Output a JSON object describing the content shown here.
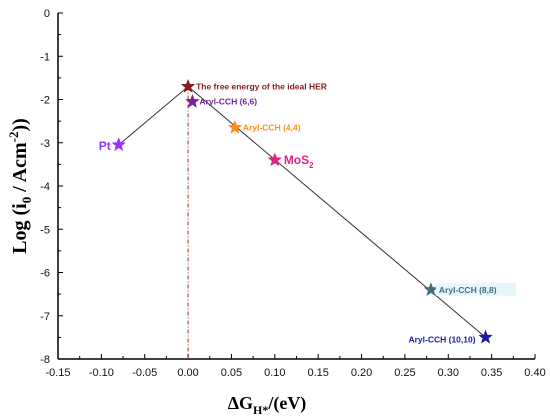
{
  "chart_data": {
    "type": "scatter",
    "title": "",
    "xlabel": {
      "main": "ΔG",
      "sub": "H*",
      "rest": "/(eV)"
    },
    "ylabel": {
      "main": "Log (i",
      "sub": "0",
      "mid": " / Acm",
      "sup": "-2",
      "rest": "))"
    },
    "xlim": [
      -0.15,
      0.4
    ],
    "ylim": [
      -8,
      0
    ],
    "xticks": [
      -0.15,
      -0.1,
      -0.05,
      0.0,
      0.05,
      0.1,
      0.15,
      0.2,
      0.25,
      0.3,
      0.35,
      0.4
    ],
    "xtick_labels": [
      "-0.15",
      "-0.10",
      "-0.05",
      "0.00",
      "0.05",
      "0.10",
      "0.15",
      "0.20",
      "0.25",
      "0.30",
      "0.35",
      "0.40"
    ],
    "yticks": [
      0,
      -1,
      -2,
      -3,
      -4,
      -5,
      -6,
      -7,
      -8
    ],
    "ytick_labels": [
      "0",
      "-1",
      "-2",
      "-3",
      "-4",
      "-5",
      "-6",
      "-7",
      "-8"
    ],
    "reference_line_x": 0.0,
    "volcano_line": [
      {
        "x": -0.08,
        "y": -3.05
      },
      {
        "x": 0.0,
        "y": -1.7
      },
      {
        "x": 0.343,
        "y": -7.5
      }
    ],
    "points": [
      {
        "name": "Pt",
        "x": -0.08,
        "y": -3.05,
        "color": "#9b30ff"
      },
      {
        "name": "The free energy of the ideal HER",
        "x": 0.0,
        "y": -1.7,
        "color": "#8b1a1a"
      },
      {
        "name": "Aryl-CCH (6,6)",
        "x": 0.005,
        "y": -2.05,
        "color": "#7a1fa2"
      },
      {
        "name": "Aryl-CCH (4,4)",
        "x": 0.054,
        "y": -2.65,
        "color": "#ff8c1a"
      },
      {
        "name": "MoS",
        "name_sub": "2",
        "x": 0.1,
        "y": -3.4,
        "color": "#e0218a"
      },
      {
        "name": "Aryl-CCH (8,8)",
        "x": 0.28,
        "y": -6.4,
        "color": "#3e6e80"
      },
      {
        "name": "Aryl-CCH (10,10)",
        "x": 0.343,
        "y": -7.5,
        "color": "#1a1a9e"
      }
    ],
    "grid": false,
    "legend": "none"
  }
}
